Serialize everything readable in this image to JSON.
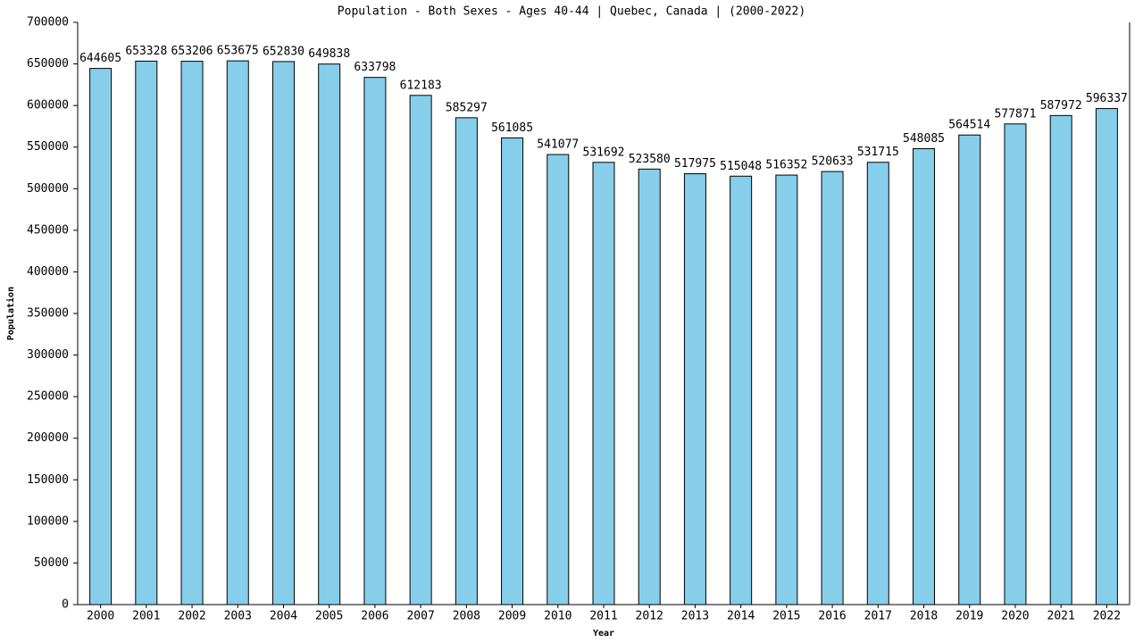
{
  "chart_data": {
    "type": "bar",
    "title": "Population - Both Sexes - Ages 40-44 | Quebec, Canada |  (2000-2022)",
    "x_label": "Year",
    "y_label": "Population",
    "categories": [
      "2000",
      "2001",
      "2002",
      "2003",
      "2004",
      "2005",
      "2006",
      "2007",
      "2008",
      "2009",
      "2010",
      "2011",
      "2012",
      "2013",
      "2014",
      "2015",
      "2016",
      "2017",
      "2018",
      "2019",
      "2020",
      "2021",
      "2022"
    ],
    "values": [
      644605,
      653328,
      653206,
      653675,
      652830,
      649838,
      633798,
      612183,
      585297,
      561085,
      541077,
      531692,
      523580,
      517975,
      515048,
      516352,
      520633,
      531715,
      548085,
      564514,
      577871,
      587972,
      596337
    ],
    "color": "#87ceeb",
    "ylim": [
      0,
      700000
    ],
    "yticks": [
      0,
      50000,
      100000,
      150000,
      200000,
      250000,
      300000,
      350000,
      400000,
      450000,
      500000,
      550000,
      600000,
      650000,
      700000
    ],
    "grid": false
  }
}
